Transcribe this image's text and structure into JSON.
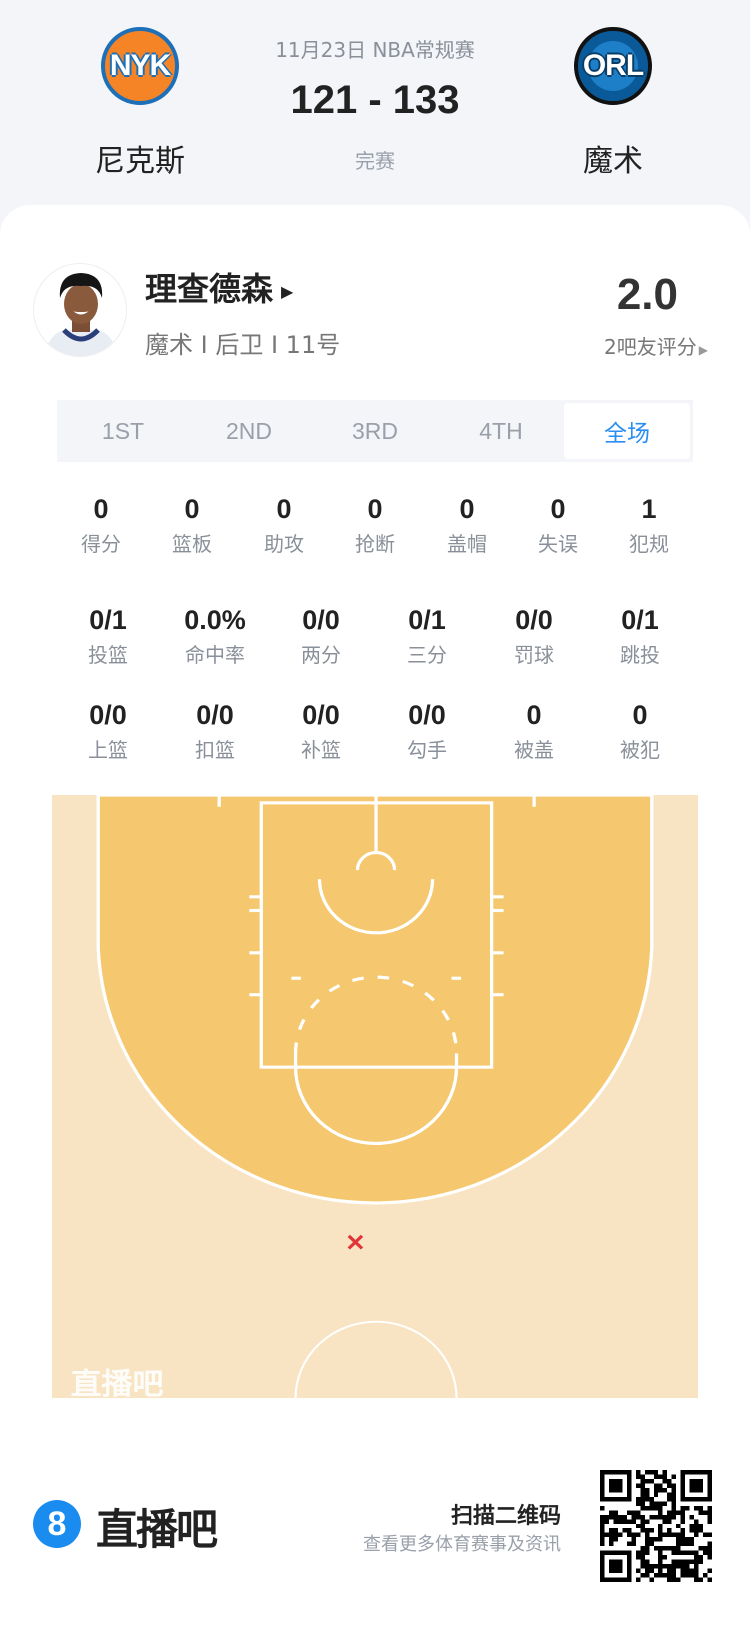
{
  "header": {
    "date_league": "11月23日 NBA常规赛",
    "score": "121 - 133",
    "status": "完赛",
    "home": {
      "abbr": "NYK",
      "name": "尼克斯"
    },
    "away": {
      "abbr": "ORL",
      "name": "魔术"
    }
  },
  "player": {
    "name": "理查德森",
    "meta": "魔术 I 后卫 I 11号",
    "rating": "2.0",
    "rating_label": "2吧友评分"
  },
  "tabs": [
    {
      "label": "1ST"
    },
    {
      "label": "2ND"
    },
    {
      "label": "3RD"
    },
    {
      "label": "4TH"
    },
    {
      "label": "全场",
      "active": true
    }
  ],
  "stats_row1": [
    {
      "v": "0",
      "l": "得分"
    },
    {
      "v": "0",
      "l": "篮板"
    },
    {
      "v": "0",
      "l": "助攻"
    },
    {
      "v": "0",
      "l": "抢断"
    },
    {
      "v": "0",
      "l": "盖帽"
    },
    {
      "v": "0",
      "l": "失误"
    },
    {
      "v": "1",
      "l": "犯规"
    }
  ],
  "stats_row2": [
    {
      "v": "0/1",
      "l": "投篮"
    },
    {
      "v": "0.0%",
      "l": "命中率"
    },
    {
      "v": "0/0",
      "l": "两分"
    },
    {
      "v": "0/1",
      "l": "三分"
    },
    {
      "v": "0/0",
      "l": "罚球"
    },
    {
      "v": "0/1",
      "l": "跳投"
    }
  ],
  "stats_row3": [
    {
      "v": "0/0",
      "l": "上篮"
    },
    {
      "v": "0/0",
      "l": "扣篮"
    },
    {
      "v": "0/0",
      "l": "补篮"
    },
    {
      "v": "0/0",
      "l": "勾手"
    },
    {
      "v": "0",
      "l": "被盖"
    },
    {
      "v": "0",
      "l": "被犯"
    }
  ],
  "court": {
    "watermark": "直播吧",
    "shots": [
      {
        "result": "miss",
        "marker": "x",
        "color": "#e0343a"
      }
    ]
  },
  "footer": {
    "brand": "直播吧",
    "brand_icon": "8",
    "scan_title": "扫描二维码",
    "scan_sub": "查看更多体育赛事及资讯"
  },
  "colors": {
    "accent": "#2b8ef0",
    "court_inner": "#f5c76e",
    "court_outer": "#f8e4c3",
    "miss": "#e0343a"
  }
}
